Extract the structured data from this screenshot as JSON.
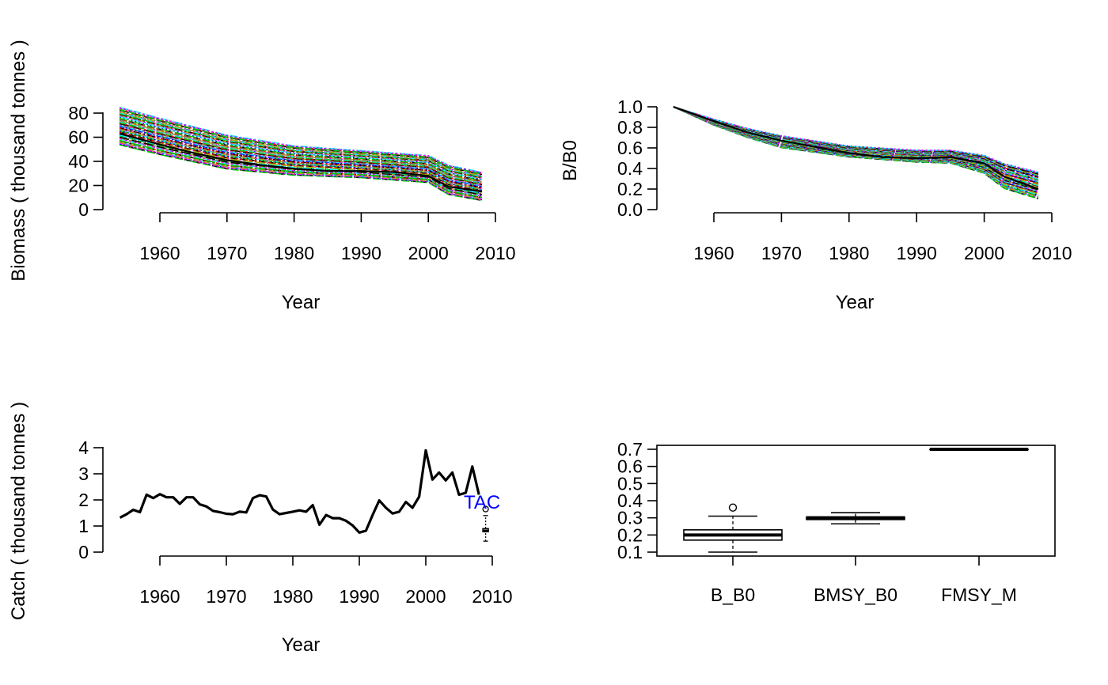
{
  "chart_data": [
    {
      "panel": "biomass",
      "type": "line",
      "xlabel": "Year",
      "ylabel": "Biomass ( thousand tonnes )",
      "x_ticks": [
        1960,
        1970,
        1980,
        1990,
        2000,
        2010
      ],
      "y_ticks": [
        0,
        20,
        40,
        60,
        80
      ],
      "xlim": [
        1954,
        2010
      ],
      "ylim": [
        0,
        85
      ],
      "series_style": "many simulated trajectories, multicolored dashed lines",
      "envelope": {
        "x": [
          1954,
          1960,
          1970,
          1980,
          1990,
          2000,
          2003,
          2008
        ],
        "low": [
          53,
          45,
          33,
          28,
          26,
          22,
          12,
          7
        ],
        "high": [
          85,
          76,
          62,
          53,
          49,
          45,
          37,
          31
        ]
      },
      "median": {
        "x": [
          1954,
          1960,
          1965,
          1970,
          1975,
          1980,
          1985,
          1990,
          1995,
          2000,
          2003,
          2008
        ],
        "y": [
          63,
          54,
          47,
          41,
          37,
          34,
          32,
          32,
          31,
          28,
          19,
          15
        ]
      }
    },
    {
      "panel": "depletion",
      "type": "line",
      "xlabel": "Year",
      "ylabel": "B/B0",
      "x_ticks": [
        1960,
        1970,
        1980,
        1990,
        2000,
        2010
      ],
      "y_ticks": [
        "0.0",
        "0.2",
        "0.4",
        "0.6",
        "0.8",
        "1.0"
      ],
      "xlim": [
        1954,
        2010
      ],
      "ylim": [
        0,
        1
      ],
      "series_style": "many simulated trajectories, multicolored dashed lines",
      "envelope": {
        "x": [
          1954,
          1960,
          1965,
          1970,
          1980,
          1990,
          1995,
          2000,
          2003,
          2008
        ],
        "low": [
          1.0,
          0.82,
          0.7,
          0.6,
          0.51,
          0.46,
          0.45,
          0.35,
          0.2,
          0.1
        ],
        "high": [
          1.0,
          0.88,
          0.79,
          0.72,
          0.62,
          0.58,
          0.58,
          0.53,
          0.45,
          0.37
        ]
      },
      "median": {
        "x": [
          1954,
          1960,
          1965,
          1970,
          1975,
          1980,
          1985,
          1990,
          1995,
          2000,
          2003,
          2008
        ],
        "y": [
          1.0,
          0.86,
          0.75,
          0.67,
          0.61,
          0.55,
          0.51,
          0.5,
          0.51,
          0.45,
          0.32,
          0.2
        ]
      }
    },
    {
      "panel": "catch",
      "type": "line",
      "xlabel": "Year",
      "ylabel": "Catch ( thousand tonnes )",
      "x_ticks": [
        1960,
        1970,
        1980,
        1990,
        2000,
        2010
      ],
      "y_ticks": [
        0,
        1,
        2,
        3,
        4
      ],
      "xlim": [
        1954,
        2010
      ],
      "ylim": [
        0,
        4
      ],
      "annotation": "TAC",
      "x": [
        1954,
        1955,
        1956,
        1957,
        1958,
        1959,
        1960,
        1961,
        1962,
        1963,
        1964,
        1965,
        1966,
        1967,
        1968,
        1969,
        1970,
        1971,
        1972,
        1973,
        1974,
        1975,
        1976,
        1977,
        1978,
        1979,
        1980,
        1981,
        1982,
        1983,
        1984,
        1985,
        1986,
        1987,
        1988,
        1989,
        1990,
        1991,
        1992,
        1993,
        1994,
        1995,
        1996,
        1997,
        1998,
        1999,
        2000,
        2001,
        2002,
        2003,
        2004,
        2005,
        2006,
        2007,
        2008
      ],
      "y": [
        1.32,
        1.45,
        1.62,
        1.53,
        2.2,
        2.07,
        2.22,
        2.1,
        2.1,
        1.85,
        2.1,
        2.1,
        1.83,
        1.75,
        1.58,
        1.53,
        1.47,
        1.45,
        1.55,
        1.52,
        2.07,
        2.18,
        2.13,
        1.63,
        1.45,
        1.5,
        1.55,
        1.6,
        1.55,
        1.8,
        1.05,
        1.42,
        1.3,
        1.3,
        1.2,
        1.02,
        0.75,
        0.82,
        1.42,
        1.98,
        1.7,
        1.48,
        1.55,
        1.92,
        1.7,
        2.12,
        3.9,
        2.78,
        3.05,
        2.75,
        3.05,
        2.2,
        2.27,
        3.28,
        2.2
      ],
      "tac_box": {
        "x": 2009,
        "whisker_low": 0.42,
        "q1": 0.78,
        "median": 0.83,
        "q3": 0.9,
        "whisker_high": 1.4,
        "outliers": [
          1.65
        ]
      }
    },
    {
      "panel": "parameters",
      "type": "box",
      "categories": [
        "B_B0",
        "BMSY_B0",
        "FMSY_M"
      ],
      "y_ticks": [
        "0.1",
        "0.2",
        "0.3",
        "0.4",
        "0.5",
        "0.6",
        "0.7"
      ],
      "ylim": [
        0.09,
        0.71
      ],
      "boxes": [
        {
          "name": "B_B0",
          "whisker_low": 0.1,
          "q1": 0.17,
          "median": 0.2,
          "q3": 0.23,
          "whisker_high": 0.31,
          "outliers": [
            0.36
          ]
        },
        {
          "name": "BMSY_B0",
          "whisker_low": 0.265,
          "q1": 0.29,
          "median": 0.3,
          "q3": 0.305,
          "whisker_high": 0.33,
          "outliers": []
        },
        {
          "name": "FMSY_M",
          "whisker_low": 0.7,
          "q1": 0.7,
          "median": 0.7,
          "q3": 0.7,
          "whisker_high": 0.7,
          "outliers": []
        }
      ]
    }
  ]
}
